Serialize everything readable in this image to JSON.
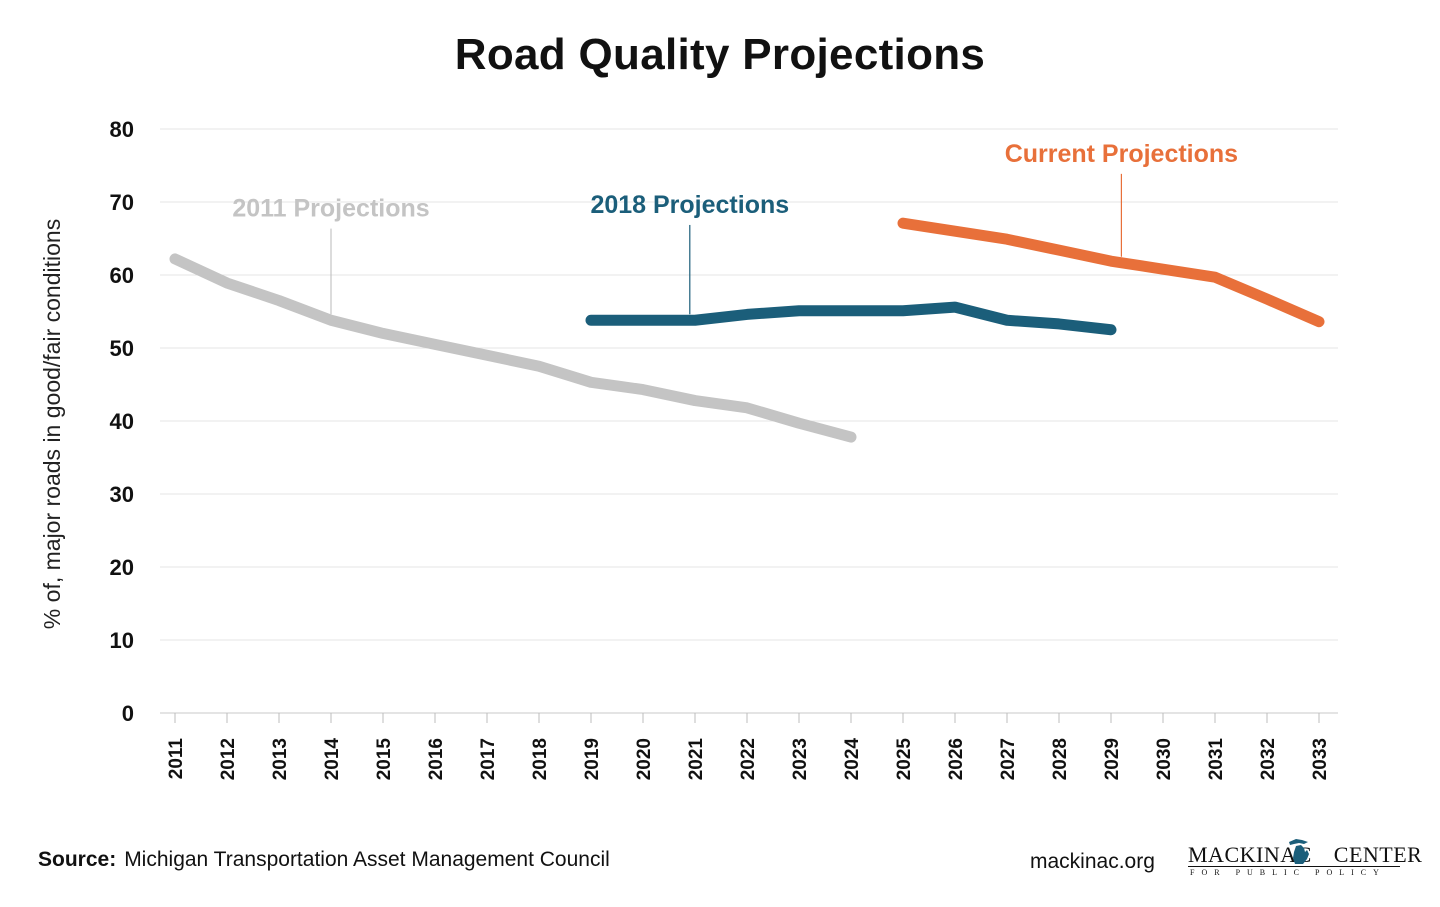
{
  "title": "Road Quality Projections",
  "source": {
    "label": "Source:",
    "text": "Michigan Transportation Asset Management Council"
  },
  "site": "mackinac.org",
  "logo": {
    "left_text": "MACKINAC",
    "right_text": "CENTER",
    "subtitle": "FOR PUBLIC POLICY",
    "icon": "michigan-map-icon",
    "color": "#1b5e7a"
  },
  "chart_data": {
    "type": "line",
    "title": "Road Quality Projections",
    "xlabel": "",
    "ylabel": "% of, major roads in good/fair conditions",
    "ylim": [
      0,
      80
    ],
    "yticks": [
      0,
      10,
      20,
      30,
      40,
      50,
      60,
      70,
      80
    ],
    "xticks": [
      2011,
      2012,
      2013,
      2014,
      2015,
      2016,
      2017,
      2018,
      2019,
      2020,
      2021,
      2022,
      2023,
      2024,
      2025,
      2026,
      2027,
      2028,
      2029,
      2030,
      2031,
      2032,
      2033
    ],
    "grid": true,
    "series": [
      {
        "name": "2011 Projections",
        "color": "#c4c4c4",
        "label_year": 2014,
        "label_value": 68,
        "x": [
          2011,
          2012,
          2013,
          2014,
          2015,
          2016,
          2017,
          2018,
          2019,
          2020,
          2021,
          2022,
          2023,
          2024
        ],
        "y": [
          62.2,
          58.9,
          56.5,
          53.8,
          52.0,
          50.5,
          49.0,
          47.5,
          45.3,
          44.3,
          42.8,
          41.8,
          39.7,
          37.8
        ]
      },
      {
        "name": "2018 Projections",
        "color": "#1b5e7a",
        "label_year": 2020.9,
        "label_value": 68.5,
        "x": [
          2019,
          2020,
          2021,
          2022,
          2023,
          2024,
          2025,
          2026,
          2027,
          2028,
          2029
        ],
        "y": [
          53.8,
          53.8,
          53.8,
          54.6,
          55.1,
          55.1,
          55.1,
          55.6,
          53.8,
          53.3,
          52.5
        ]
      },
      {
        "name": "Current Projections",
        "color": "#e8703a",
        "label_year": 2029.2,
        "label_value": 75.5,
        "x": [
          2025,
          2026,
          2027,
          2028,
          2029,
          2030,
          2031,
          2032,
          2033
        ],
        "y": [
          67.1,
          66.0,
          64.9,
          63.4,
          61.9,
          60.8,
          59.7,
          56.7,
          53.6
        ]
      }
    ]
  }
}
